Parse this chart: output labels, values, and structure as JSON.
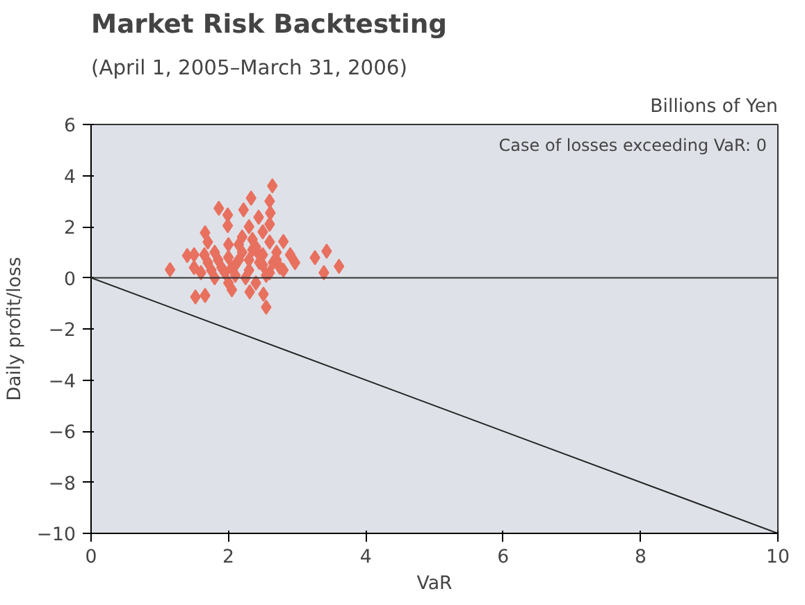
{
  "chart_data": {
    "type": "scatter",
    "title": "Market Risk Backtesting",
    "subtitle": "(April 1, 2005–March 31, 2006)",
    "xlabel": "VaR",
    "ylabel": "Daily profit/loss",
    "annotations": [
      "Billions of Yen",
      "Case of losses exceeding VaR: 0"
    ],
    "xlim": [
      0,
      10
    ],
    "xticks": [
      0,
      2,
      4,
      6,
      8,
      10
    ],
    "ylim": [
      -10,
      6
    ],
    "yticks": [
      -10,
      -8,
      -6,
      -4,
      -2,
      0,
      2,
      4,
      6
    ],
    "grid": false,
    "marker": "diamond",
    "ref_lines": [
      {
        "axis": "y",
        "value": 0,
        "color": "#333333"
      }
    ],
    "series": [
      {
        "color": "#e8705f",
        "x": [
          1.15,
          2.64,
          2.33,
          1.86,
          2.6,
          1.66,
          1.52,
          1.66,
          2.55,
          3.43,
          3.61,
          3.26,
          3.39,
          2.97,
          2.8,
          2.05,
          2.31,
          2.51,
          1.4,
          1.99,
          2.22,
          2.44,
          1.99,
          2.61,
          1.6,
          1.7,
          1.8,
          1.8,
          1.9,
          2.0,
          2.0,
          2.1,
          2.1,
          2.2,
          2.2,
          2.3,
          2.3,
          2.4,
          2.4,
          2.5,
          2.5,
          2.5,
          2.6,
          2.6,
          2.7,
          2.7,
          1.5,
          1.5,
          2.0,
          2.8,
          2.9,
          1.7,
          2.3,
          2.6,
          1.75,
          1.85,
          1.95,
          2.05,
          2.15,
          2.25,
          2.35,
          2.45,
          2.55,
          2.65,
          2.15,
          2.35,
          2.45,
          1.65,
          2.75
        ],
        "values": [
          0.32,
          3.6,
          3.12,
          2.72,
          3.0,
          1.76,
          -0.75,
          -0.69,
          -1.15,
          1.04,
          0.45,
          0.79,
          0.2,
          0.59,
          1.42,
          -0.47,
          -0.55,
          -0.64,
          0.87,
          2.46,
          2.66,
          2.37,
          2.04,
          2.54,
          0.2,
          0.6,
          1.0,
          0.0,
          0.4,
          0.8,
          1.3,
          0.1,
          0.5,
          1.0,
          1.6,
          0.3,
          0.7,
          1.2,
          -0.2,
          0.5,
          0.9,
          1.8,
          0.2,
          1.4,
          0.7,
          1.0,
          0.4,
          0.9,
          -0.2,
          0.3,
          0.9,
          1.4,
          2.0,
          2.1,
          0.3,
          0.7,
          0.2,
          0.4,
          0.7,
          0.0,
          1.1,
          0.6,
          0.1,
          0.6,
          1.3,
          1.5,
          0.9,
          0.9,
          0.4
        ]
      },
      {
        "type": "line",
        "color": "#222222",
        "x": [
          0,
          10
        ],
        "values": [
          0,
          -10
        ],
        "marker": "none"
      }
    ]
  }
}
